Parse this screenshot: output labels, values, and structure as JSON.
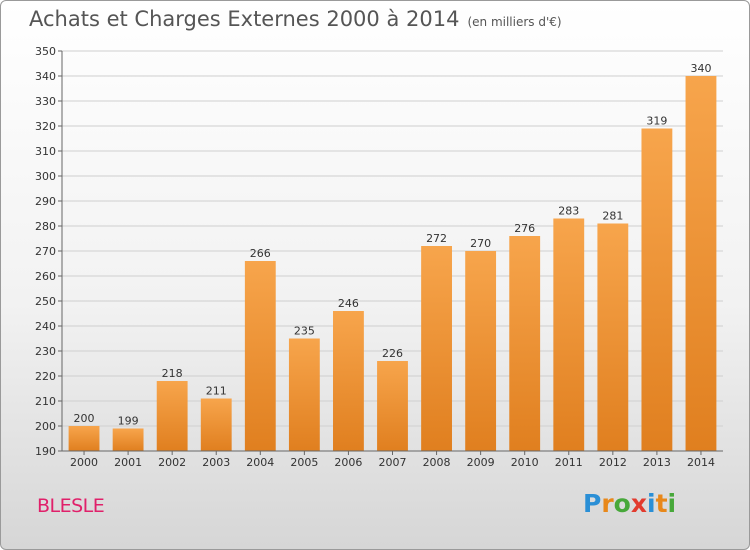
{
  "header": {
    "title": "Achats et Charges Externes 2000 à 2014",
    "subtitle": "(en milliers d'€)"
  },
  "footer": {
    "commune": "BLESLE",
    "logo_letters": [
      "P",
      "r",
      "o",
      "x",
      "i",
      "t",
      "i"
    ],
    "logo_colors": [
      "#2a8fd6",
      "#e8881a",
      "#47a83a",
      "#e23b2e",
      "#2a8fd6",
      "#e8881a",
      "#47a83a"
    ]
  },
  "chart_data": {
    "type": "bar",
    "categories": [
      "2000",
      "2001",
      "2002",
      "2003",
      "2004",
      "2005",
      "2006",
      "2007",
      "2008",
      "2009",
      "2010",
      "2011",
      "2012",
      "2013",
      "2014"
    ],
    "values": [
      200,
      199,
      218,
      211,
      266,
      235,
      246,
      226,
      272,
      270,
      276,
      283,
      281,
      319,
      340
    ],
    "ylim": [
      190,
      350
    ],
    "yticks": [
      190,
      200,
      210,
      220,
      230,
      240,
      250,
      260,
      270,
      280,
      290,
      300,
      310,
      320,
      330,
      340,
      350
    ],
    "grid": true,
    "bar_color_light": "#f7a54c",
    "bar_color_dark": "#e07f1f",
    "data_labels": true
  }
}
